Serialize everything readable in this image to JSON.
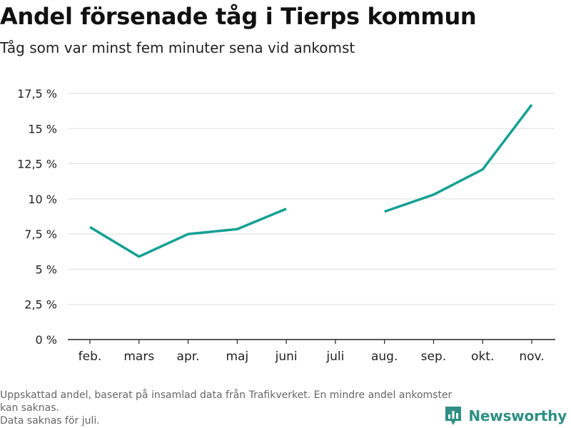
{
  "chart_data": {
    "type": "line",
    "title": "Andel försenade tåg i Tierps kommun",
    "subtitle": "Tåg som var minst fem minuter sena vid ankomst",
    "categories": [
      "feb.",
      "mars",
      "apr.",
      "maj",
      "juni",
      "juli",
      "aug.",
      "sep.",
      "okt.",
      "nov."
    ],
    "series": [
      {
        "values": [
          8.0,
          5.9,
          7.5,
          7.85,
          9.3,
          null,
          9.1,
          10.3,
          12.1,
          16.7
        ],
        "color": "#13a093"
      }
    ],
    "y_ticks": [
      {
        "value": 0,
        "label": "0 %"
      },
      {
        "value": 2.5,
        "label": "2,5 %"
      },
      {
        "value": 5,
        "label": "5 %"
      },
      {
        "value": 7.5,
        "label": "7,5 %"
      },
      {
        "value": 10,
        "label": "10 %"
      },
      {
        "value": 12.5,
        "label": "12,5 %"
      },
      {
        "value": 15,
        "label": "15 %"
      },
      {
        "value": 17.5,
        "label": "17,5 %"
      }
    ],
    "ylim": [
      0,
      17.5
    ],
    "grid": true,
    "xlabel": "",
    "ylabel": ""
  },
  "footnote": {
    "line1": "Uppskattad andel, baserat på insamlad data från Trafikverket. En mindre andel ankomster kan saknas.",
    "line2": "Data saknas för juli."
  },
  "brand": {
    "name": "Newsworthy",
    "icon": "newsworthy-logo-icon",
    "color": "#2f8f83"
  }
}
